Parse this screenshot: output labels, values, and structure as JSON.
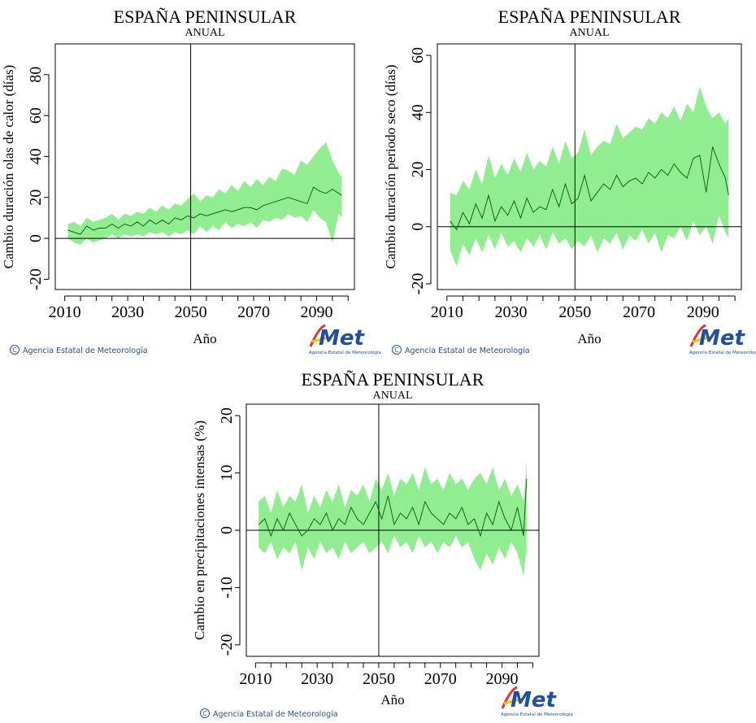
{
  "credit": {
    "symbol": "©",
    "text": "Agencia Estatal de Meteorología"
  },
  "logo": {
    "word": "AEMet",
    "caption": "Agencia Estatal de Meteorología",
    "colors": {
      "red": "#e8302a",
      "yellow": "#f2c500",
      "blue": "#1f4fa0"
    }
  },
  "colors": {
    "band": "#90ee90",
    "line": "#1a5e1a",
    "axis": "#000000"
  },
  "chart_data": [
    {
      "type": "area",
      "title": "ESPAÑA PENINSULAR",
      "subtitle": "ANUAL",
      "xlabel": "Año",
      "ylabel": "Cambio duración olas de calor (días)",
      "xlim": [
        2007,
        2102
      ],
      "ylim": [
        -25,
        95
      ],
      "xticks": [
        2010,
        2030,
        2050,
        2070,
        2090
      ],
      "yticks": [
        -20,
        0,
        20,
        40,
        60,
        80
      ],
      "hline": 0,
      "vline": 2050,
      "grid": false,
      "series": [
        {
          "role": "range",
          "x": [
            2011,
            2013,
            2015,
            2017,
            2019,
            2021,
            2023,
            2025,
            2027,
            2029,
            2031,
            2033,
            2035,
            2037,
            2039,
            2041,
            2043,
            2045,
            2047,
            2049,
            2051,
            2053,
            2055,
            2057,
            2059,
            2061,
            2063,
            2065,
            2067,
            2069,
            2071,
            2073,
            2075,
            2077,
            2079,
            2081,
            2083,
            2085,
            2087,
            2089,
            2091,
            2093,
            2095,
            2097,
            2098
          ],
          "low": [
            0,
            -2,
            -3,
            0,
            -2,
            -1,
            0,
            2,
            0,
            2,
            1,
            2,
            1,
            3,
            2,
            3,
            1,
            3,
            2,
            4,
            2,
            6,
            3,
            6,
            4,
            8,
            5,
            7,
            6,
            8,
            5,
            9,
            8,
            10,
            9,
            12,
            10,
            11,
            8,
            14,
            10,
            8,
            -2,
            12,
            10
          ],
          "high": [
            7,
            8,
            6,
            10,
            8,
            9,
            10,
            12,
            9,
            12,
            11,
            13,
            12,
            15,
            13,
            16,
            14,
            17,
            16,
            19,
            22,
            18,
            21,
            20,
            24,
            22,
            26,
            23,
            28,
            25,
            29,
            26,
            30,
            28,
            34,
            33,
            31,
            38,
            36,
            40,
            44,
            47,
            38,
            32,
            30
          ]
        },
        {
          "role": "median",
          "x": [
            2011,
            2013,
            2015,
            2017,
            2019,
            2021,
            2023,
            2025,
            2027,
            2029,
            2031,
            2033,
            2035,
            2037,
            2039,
            2041,
            2043,
            2045,
            2047,
            2049,
            2051,
            2053,
            2055,
            2057,
            2059,
            2061,
            2063,
            2065,
            2067,
            2069,
            2071,
            2073,
            2075,
            2077,
            2079,
            2081,
            2083,
            2085,
            2087,
            2089,
            2091,
            2093,
            2095,
            2097,
            2098
          ],
          "values": [
            4,
            3,
            2,
            6,
            4,
            5,
            5,
            7,
            5,
            7,
            6,
            8,
            6,
            9,
            7,
            9,
            7,
            10,
            9,
            11,
            10,
            12,
            11,
            12,
            13,
            14,
            13,
            14,
            15,
            15,
            14,
            16,
            17,
            18,
            19,
            20,
            19,
            18,
            17,
            25,
            23,
            22,
            24,
            22,
            21
          ]
        }
      ]
    },
    {
      "type": "area",
      "title": "ESPAÑA PENINSULAR",
      "subtitle": "ANUAL",
      "xlabel": "Año",
      "ylabel": "Cambio duración periodo seco (días)",
      "xlim": [
        2007,
        2102
      ],
      "ylim": [
        -22,
        64
      ],
      "xticks": [
        2010,
        2030,
        2050,
        2070,
        2090
      ],
      "yticks": [
        -20,
        0,
        20,
        40,
        60
      ],
      "hline": 0,
      "vline": 2050,
      "grid": false,
      "series": [
        {
          "role": "range",
          "x": [
            2011,
            2013,
            2015,
            2017,
            2019,
            2021,
            2023,
            2025,
            2027,
            2029,
            2031,
            2033,
            2035,
            2037,
            2039,
            2041,
            2043,
            2045,
            2047,
            2049,
            2051,
            2053,
            2055,
            2057,
            2059,
            2061,
            2063,
            2065,
            2067,
            2069,
            2071,
            2073,
            2075,
            2077,
            2079,
            2081,
            2083,
            2085,
            2087,
            2089,
            2091,
            2093,
            2095,
            2097,
            2098
          ],
          "low": [
            -8,
            -14,
            -6,
            -10,
            -4,
            -9,
            -3,
            -8,
            -2,
            -7,
            -5,
            -9,
            -4,
            -7,
            -3,
            -8,
            -2,
            -6,
            -4,
            -8,
            -5,
            -7,
            -3,
            -9,
            -4,
            -6,
            -2,
            -8,
            -3,
            -5,
            -1,
            -6,
            -2,
            -9,
            -3,
            -4,
            0,
            -5,
            2,
            -3,
            0,
            -6,
            4,
            -2,
            -4
          ],
          "high": [
            12,
            11,
            16,
            13,
            20,
            15,
            25,
            17,
            22,
            18,
            24,
            19,
            26,
            20,
            23,
            21,
            28,
            22,
            30,
            24,
            26,
            34,
            25,
            28,
            30,
            29,
            36,
            31,
            33,
            35,
            34,
            38,
            36,
            40,
            38,
            42,
            37,
            43,
            40,
            49,
            42,
            38,
            40,
            36,
            38
          ]
        },
        {
          "role": "median",
          "x": [
            2011,
            2013,
            2015,
            2017,
            2019,
            2021,
            2023,
            2025,
            2027,
            2029,
            2031,
            2033,
            2035,
            2037,
            2039,
            2041,
            2043,
            2045,
            2047,
            2049,
            2051,
            2053,
            2055,
            2057,
            2059,
            2061,
            2063,
            2065,
            2067,
            2069,
            2071,
            2073,
            2075,
            2077,
            2079,
            2081,
            2083,
            2085,
            2087,
            2089,
            2091,
            2093,
            2095,
            2097,
            2098
          ],
          "values": [
            2,
            -1,
            5,
            1,
            8,
            3,
            11,
            2,
            7,
            4,
            9,
            3,
            10,
            5,
            7,
            6,
            13,
            7,
            15,
            8,
            10,
            18,
            9,
            12,
            15,
            13,
            18,
            14,
            16,
            17,
            15,
            19,
            17,
            20,
            18,
            22,
            19,
            17,
            24,
            25,
            12,
            28,
            22,
            17,
            11
          ]
        }
      ]
    },
    {
      "type": "area",
      "title": "ESPAÑA PENINSULAR",
      "subtitle": "ANUAL",
      "xlabel": "Año",
      "ylabel": "Cambio en precipitaciones intensas (%)",
      "xlim": [
        2007,
        2102
      ],
      "ylim": [
        -22,
        22
      ],
      "xticks": [
        2010,
        2030,
        2050,
        2070,
        2090
      ],
      "yticks": [
        -20,
        -10,
        0,
        10,
        20
      ],
      "hline": 0,
      "vline": 2050,
      "grid": false,
      "series": [
        {
          "role": "range",
          "x": [
            2011,
            2013,
            2015,
            2017,
            2019,
            2021,
            2023,
            2025,
            2027,
            2029,
            2031,
            2033,
            2035,
            2037,
            2039,
            2041,
            2043,
            2045,
            2047,
            2049,
            2051,
            2053,
            2055,
            2057,
            2059,
            2061,
            2063,
            2065,
            2067,
            2069,
            2071,
            2073,
            2075,
            2077,
            2079,
            2081,
            2083,
            2085,
            2087,
            2089,
            2091,
            2093,
            2095,
            2097,
            2098
          ],
          "low": [
            -3,
            -4,
            -2,
            -5,
            -3,
            -4,
            -2,
            -7,
            -3,
            -5,
            -2,
            -4,
            -3,
            -5,
            -2,
            -4,
            -3,
            -2,
            -4,
            -3,
            -2,
            -4,
            -1,
            -3,
            -2,
            -4,
            -1,
            -3,
            -2,
            -4,
            -2,
            -3,
            -1,
            -3,
            -2,
            -5,
            -7,
            -4,
            -6,
            -3,
            -5,
            -2,
            -4,
            -8,
            -3
          ],
          "high": [
            5,
            6,
            3,
            7,
            4,
            6,
            5,
            8,
            3,
            6,
            4,
            7,
            5,
            8,
            4,
            7,
            6,
            8,
            5,
            9,
            7,
            10,
            6,
            9,
            8,
            10,
            7,
            11,
            8,
            9,
            7,
            10,
            8,
            9,
            7,
            9,
            10,
            8,
            11,
            7,
            9,
            6,
            8,
            5,
            12
          ]
        },
        {
          "role": "median",
          "x": [
            2011,
            2013,
            2015,
            2017,
            2019,
            2021,
            2023,
            2025,
            2027,
            2029,
            2031,
            2033,
            2035,
            2037,
            2039,
            2041,
            2043,
            2045,
            2047,
            2049,
            2051,
            2053,
            2055,
            2057,
            2059,
            2061,
            2063,
            2065,
            2067,
            2069,
            2071,
            2073,
            2075,
            2077,
            2079,
            2081,
            2083,
            2085,
            2087,
            2089,
            2091,
            2093,
            2095,
            2097,
            2098
          ],
          "values": [
            1,
            2,
            -1,
            2,
            0,
            3,
            1,
            -1,
            0,
            2,
            1,
            3,
            0,
            2,
            1,
            4,
            2,
            1,
            3,
            5,
            2,
            6,
            1,
            3,
            2,
            4,
            1,
            5,
            3,
            2,
            1,
            3,
            2,
            4,
            1,
            2,
            -1,
            3,
            1,
            5,
            2,
            0,
            4,
            -1,
            9
          ]
        }
      ]
    }
  ]
}
